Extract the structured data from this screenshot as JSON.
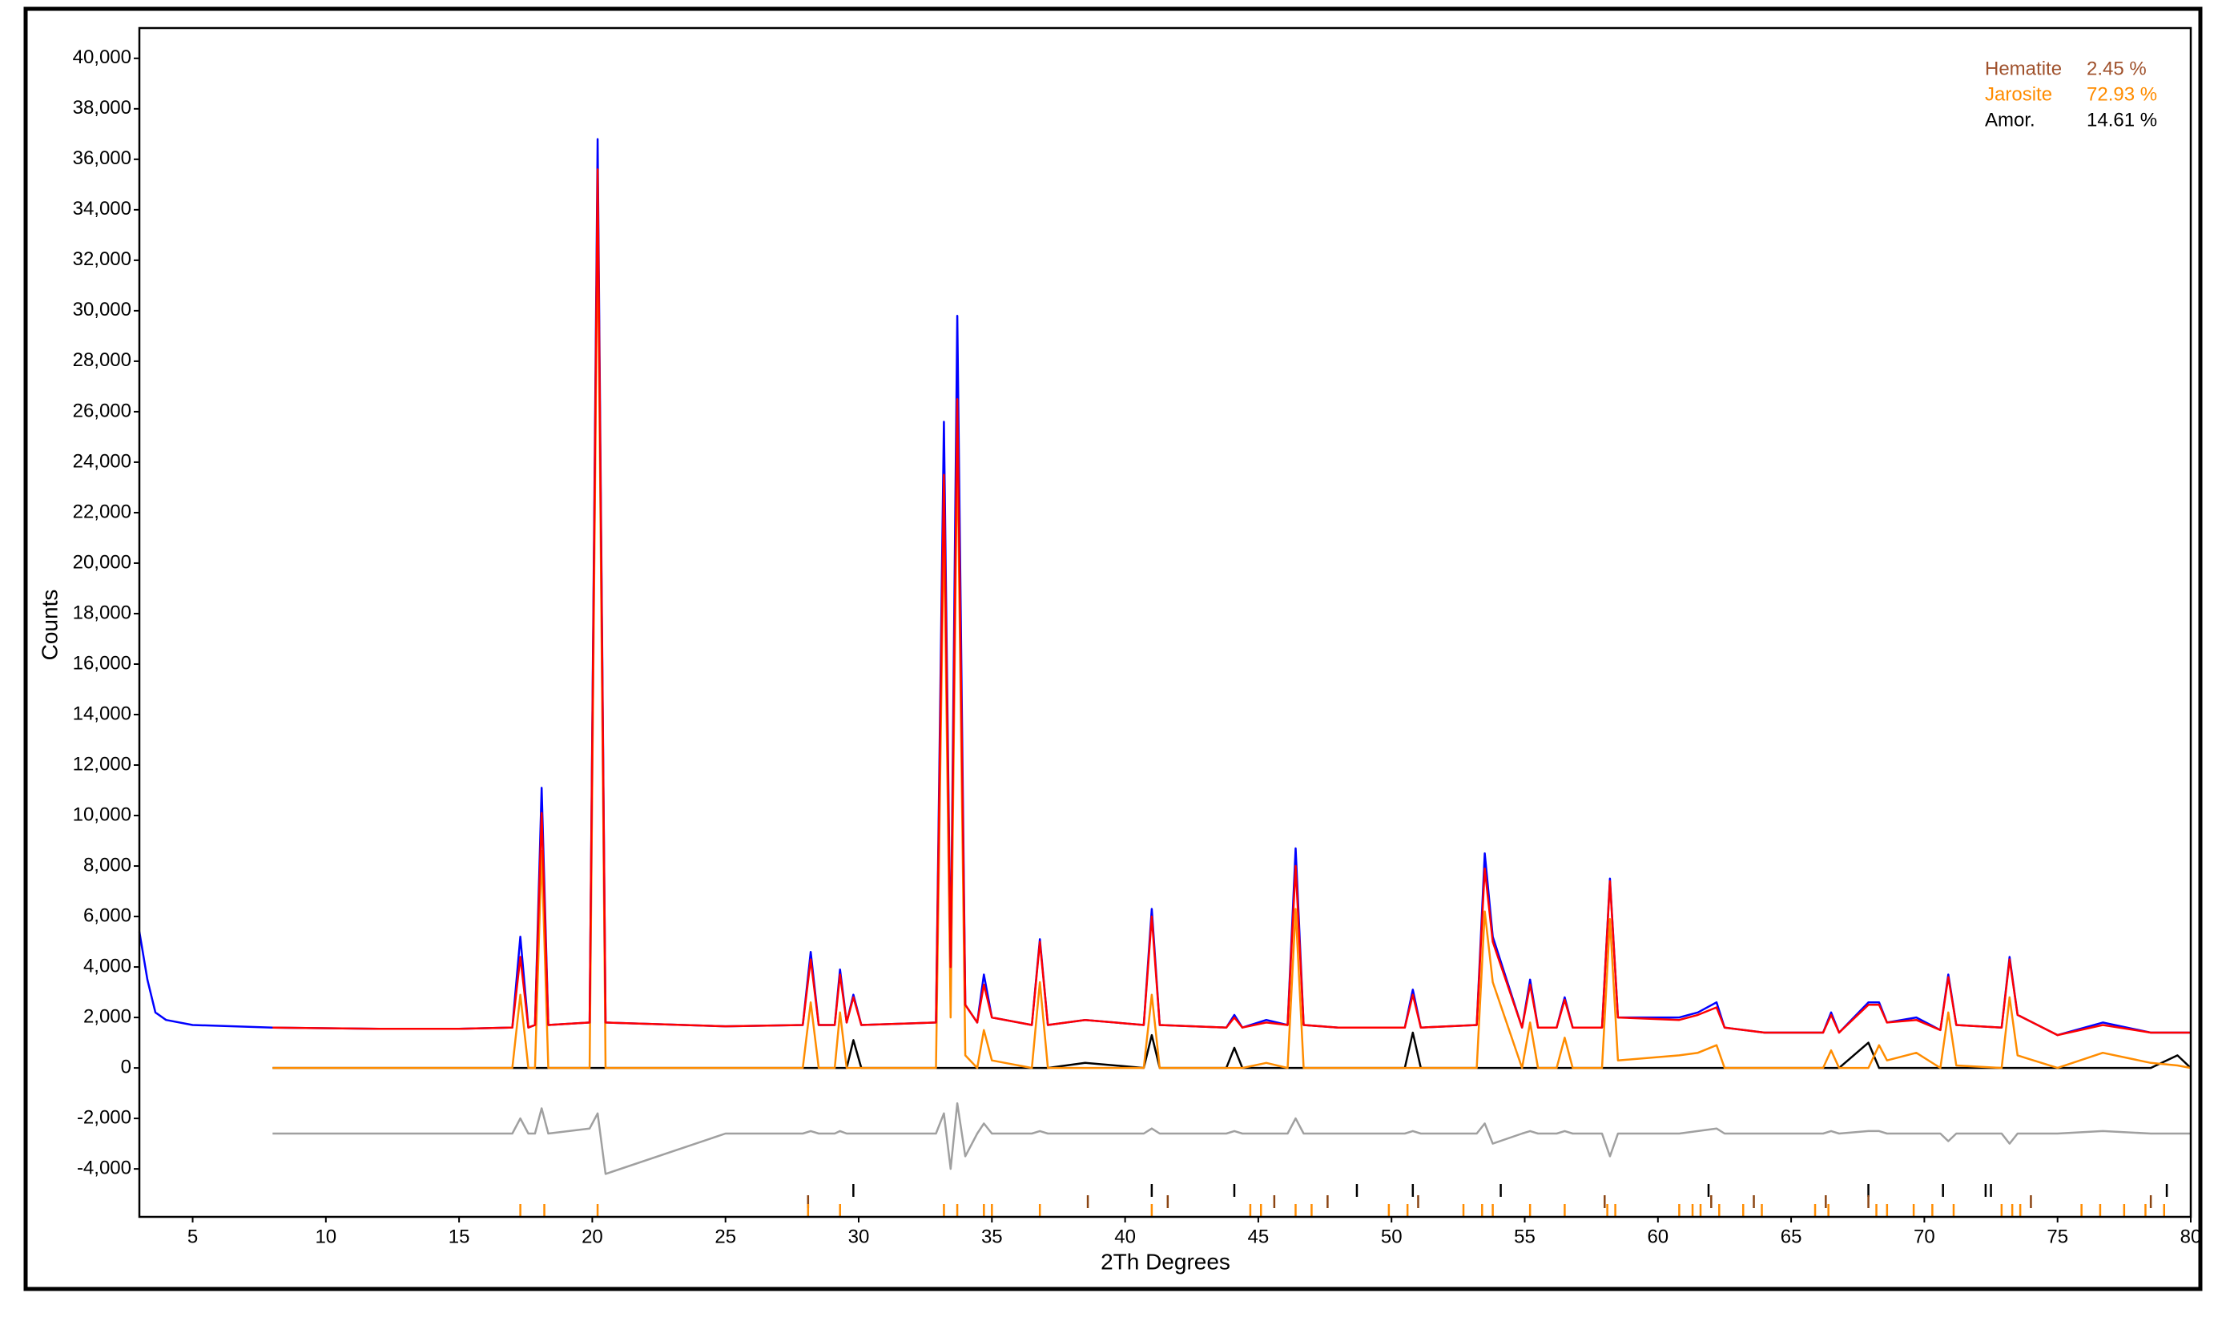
{
  "chart_data": {
    "type": "line",
    "x_label": "2Th Degrees",
    "y_label": "Counts",
    "xlim": [
      3,
      80
    ],
    "ylim": [
      -5900,
      41200
    ],
    "xticks": [
      5,
      10,
      15,
      20,
      25,
      30,
      35,
      40,
      45,
      50,
      55,
      60,
      65,
      70,
      75,
      80
    ],
    "yticks": [
      {
        "value": -4000,
        "label": "-4,000"
      },
      {
        "value": -2000,
        "label": "-2,000"
      },
      0,
      {
        "value": 2000,
        "label": "2,000"
      },
      {
        "value": 4000,
        "label": "4,000"
      },
      {
        "value": 6000,
        "label": "6,000"
      },
      {
        "value": 8000,
        "label": "8,000"
      },
      {
        "value": 10000,
        "label": "10,000"
      },
      {
        "value": 12000,
        "label": "12,000"
      },
      {
        "value": 14000,
        "label": "14,000"
      },
      {
        "value": 16000,
        "label": "16,000"
      },
      {
        "value": 18000,
        "label": "18,000"
      },
      {
        "value": 20000,
        "label": "20,000"
      },
      {
        "value": 22000,
        "label": "22,000"
      },
      {
        "value": 24000,
        "label": "24,000"
      },
      {
        "value": 26000,
        "label": "26,000"
      },
      {
        "value": 28000,
        "label": "28,000"
      },
      {
        "value": 30000,
        "label": "30,000"
      },
      {
        "value": 32000,
        "label": "32,000"
      },
      {
        "value": 34000,
        "label": "34,000"
      },
      {
        "value": 36000,
        "label": "36,000"
      },
      {
        "value": 38000,
        "label": "38,000"
      },
      {
        "value": 40000,
        "label": "40,000"
      }
    ],
    "x": [
      3,
      3.3,
      3.6,
      4,
      5,
      8,
      12,
      15,
      17.0,
      17.3,
      17.6,
      17.85,
      18.1,
      18.35,
      19.9,
      20.2,
      20.5,
      25,
      27.9,
      28.2,
      28.5,
      29.1,
      29.3,
      29.55,
      29.8,
      30.1,
      32.9,
      33.2,
      33.45,
      33.7,
      34.0,
      34.45,
      34.7,
      35.0,
      36.5,
      36.8,
      37.1,
      38.5,
      40.7,
      41.0,
      41.3,
      43.8,
      44.1,
      44.4,
      45.3,
      46.1,
      46.4,
      46.7,
      48,
      50.5,
      50.8,
      51.1,
      53.2,
      53.5,
      53.8,
      54.9,
      55.2,
      55.5,
      56.2,
      56.5,
      56.8,
      57.9,
      58.2,
      58.5,
      60.8,
      61.5,
      62.2,
      62.5,
      64,
      66.2,
      66.5,
      66.8,
      67.9,
      68.3,
      68.6,
      69.7,
      70.6,
      70.9,
      71.2,
      72.9,
      73.2,
      73.5,
      75,
      76.7,
      78.5,
      79.5,
      80
    ],
    "series": [
      {
        "color": "#0000ff",
        "values": [
          5400,
          3500,
          2200,
          1900,
          1700,
          1600,
          1550,
          1550,
          1600,
          5200,
          1600,
          1700,
          11100,
          1700,
          1800,
          36800,
          1800,
          1650,
          1700,
          4600,
          1700,
          1700,
          3900,
          1800,
          2900,
          1700,
          1800,
          25600,
          4000,
          29800,
          2500,
          1800,
          3700,
          2000,
          1700,
          5100,
          1700,
          1900,
          1700,
          6300,
          1700,
          1600,
          2100,
          1600,
          1900,
          1700,
          8700,
          1700,
          1600,
          1600,
          3100,
          1600,
          1700,
          8500,
          5200,
          1600,
          3500,
          1600,
          1600,
          2800,
          1600,
          1600,
          7500,
          2000,
          2000,
          2200,
          2600,
          1600,
          1400,
          1400,
          2200,
          1400,
          2600,
          2600,
          1800,
          2000,
          1500,
          3700,
          1700,
          1600,
          4400,
          2100,
          1300,
          1800,
          1400,
          1400,
          1400
        ]
      },
      {
        "color": "#ff0000",
        "values": [
          null,
          null,
          null,
          null,
          null,
          1600,
          1550,
          1550,
          1600,
          4400,
          1600,
          1700,
          10100,
          1700,
          1800,
          35600,
          1800,
          1650,
          1700,
          4300,
          1700,
          1700,
          3700,
          1800,
          2800,
          1700,
          1800,
          23500,
          4000,
          26500,
          2500,
          1800,
          3300,
          2000,
          1700,
          5000,
          1700,
          1900,
          1700,
          6000,
          1700,
          1600,
          2000,
          1600,
          1800,
          1700,
          8000,
          1700,
          1600,
          1600,
          2900,
          1600,
          1700,
          7900,
          5000,
          1600,
          3300,
          1600,
          1600,
          2700,
          1600,
          1600,
          7400,
          2000,
          1900,
          2100,
          2400,
          1600,
          1400,
          1400,
          2100,
          1400,
          2500,
          2500,
          1800,
          1900,
          1500,
          3600,
          1700,
          1600,
          4300,
          2100,
          1300,
          1700,
          1400,
          1400,
          1400
        ]
      },
      {
        "color": "#ff8c00",
        "values": [
          null,
          null,
          null,
          null,
          null,
          0,
          0,
          0,
          0,
          2900,
          0,
          0,
          8600,
          0,
          0,
          34000,
          0,
          0,
          0,
          2600,
          0,
          0,
          2200,
          0,
          0,
          0,
          0,
          21800,
          2000,
          25000,
          500,
          0,
          1500,
          300,
          0,
          3400,
          0,
          0,
          0,
          2900,
          0,
          0,
          0,
          0,
          200,
          0,
          6300,
          0,
          0,
          0,
          0,
          0,
          0,
          6200,
          3400,
          0,
          1800,
          0,
          0,
          1200,
          0,
          0,
          5900,
          300,
          500,
          600,
          900,
          0,
          0,
          0,
          700,
          0,
          0,
          900,
          300,
          600,
          0,
          2200,
          100,
          0,
          2800,
          500,
          0,
          600,
          200,
          100,
          0
        ]
      },
      {
        "color": "#000000",
        "values": [
          null,
          null,
          null,
          null,
          null,
          0,
          0,
          0,
          0,
          0,
          0,
          0,
          0,
          0,
          0,
          0,
          0,
          0,
          0,
          0,
          0,
          0,
          0,
          0,
          1100,
          0,
          0,
          0,
          0,
          0,
          0,
          0,
          0,
          0,
          0,
          0,
          0,
          200,
          0,
          1300,
          0,
          0,
          800,
          0,
          0,
          0,
          0,
          0,
          0,
          0,
          1400,
          0,
          0,
          0,
          0,
          0,
          0,
          0,
          0,
          0,
          0,
          0,
          0,
          0,
          0,
          0,
          0,
          0,
          0,
          0,
          0,
          0,
          1000,
          0,
          0,
          0,
          0,
          0,
          0,
          0,
          0,
          0,
          0,
          0,
          0,
          500,
          0
        ]
      },
      {
        "color": "#a0a0a0",
        "values": [
          null,
          null,
          null,
          null,
          null,
          -2600,
          -2600,
          -2600,
          -2600,
          -2000,
          -2600,
          -2600,
          -1600,
          -2600,
          -2400,
          -1800,
          -4200,
          -2600,
          -2600,
          -2500,
          -2600,
          -2600,
          -2500,
          -2600,
          -2600,
          -2600,
          -2600,
          -1800,
          -4000,
          -1400,
          -3500,
          -2600,
          -2200,
          -2600,
          -2600,
          -2500,
          -2600,
          -2600,
          -2600,
          -2400,
          -2600,
          -2600,
          -2500,
          -2600,
          -2600,
          -2600,
          -2000,
          -2600,
          -2600,
          -2600,
          -2500,
          -2600,
          -2600,
          -2200,
          -3000,
          -2600,
          -2500,
          -2600,
          -2600,
          -2500,
          -2600,
          -2600,
          -3500,
          -2600,
          -2600,
          -2500,
          -2400,
          -2600,
          -2600,
          -2600,
          -2500,
          -2600,
          -2500,
          -2500,
          -2600,
          -2600,
          -2600,
          -2900,
          -2600,
          -2600,
          -3000,
          -2600,
          -2600,
          -2500,
          -2600,
          -2600,
          -2600
        ]
      }
    ],
    "phase_fractions": {
      "names": [
        "Hematite",
        "Jarosite",
        "Amor."
      ],
      "colors": [
        "#a0522d",
        "#ff8c00",
        "#000000"
      ],
      "values": [
        2.45,
        72.93,
        14.61
      ],
      "value_labels": [
        "2.45 %",
        "72.93 %",
        "14.61 %"
      ]
    },
    "reflections": [
      {
        "color": "#000000",
        "positions": [
          29.8,
          41.0,
          44.1,
          48.7,
          50.8,
          54.1,
          61.9,
          67.9,
          70.7,
          72.3,
          72.5,
          79.1
        ]
      },
      {
        "color": "#8b4513",
        "positions": [
          28.1,
          38.6,
          41.6,
          45.6,
          47.6,
          51.0,
          58.0,
          62.0,
          63.6,
          66.3,
          67.9,
          74.0,
          78.5
        ]
      },
      {
        "color": "#ff8c00",
        "positions": [
          17.3,
          18.2,
          20.2,
          28.1,
          29.3,
          33.2,
          33.7,
          34.7,
          35.0,
          36.8,
          41.0,
          44.7,
          45.1,
          46.4,
          47.0,
          49.9,
          50.6,
          52.7,
          53.4,
          53.8,
          55.2,
          56.5,
          58.1,
          58.4,
          60.8,
          61.3,
          61.6,
          62.3,
          63.2,
          63.9,
          65.9,
          66.4,
          68.2,
          68.6,
          69.6,
          70.3,
          71.1,
          72.9,
          73.3,
          73.6,
          75.9,
          76.6,
          77.5,
          78.3,
          79.0
        ]
      }
    ]
  }
}
